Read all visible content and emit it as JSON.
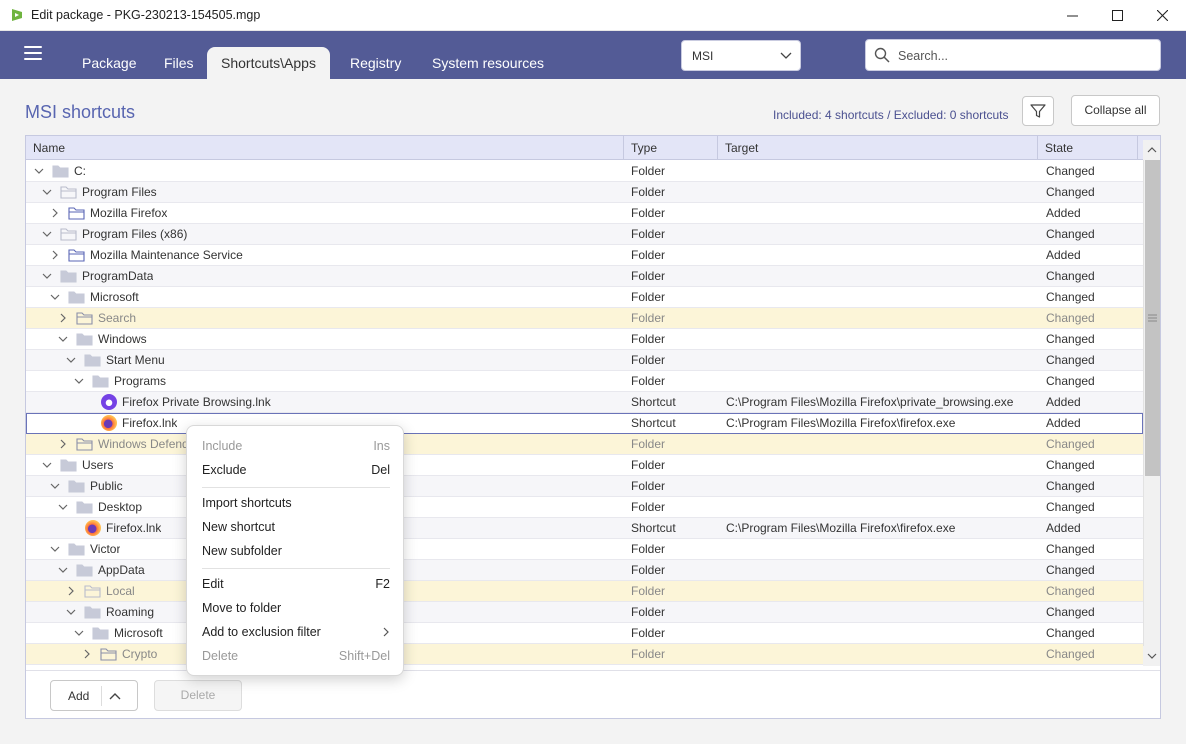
{
  "window": {
    "title": "Edit package - PKG-230213-154505.mgp",
    "minimize_icon": "minimize-icon",
    "maximize_icon": "maximize-icon",
    "close_icon": "close-icon"
  },
  "nav": {
    "tabs": [
      {
        "label": "Package"
      },
      {
        "label": "Files"
      },
      {
        "label": "Shortcuts\\Apps",
        "active": true
      },
      {
        "label": "Registry"
      },
      {
        "label": "System resources"
      }
    ],
    "msi_select": "MSI",
    "search_placeholder": "Search...",
    "accent": "#535b96"
  },
  "page": {
    "title": "MSI shortcuts",
    "summary": "Included: 4 shortcuts / Excluded: 0 shortcuts",
    "collapse_all": "Collapse all"
  },
  "grid": {
    "columns": [
      "Name",
      "Type",
      "Target",
      "State"
    ],
    "rows": [
      {
        "name": "C:",
        "level": 0,
        "exp": "open",
        "icon": "folder-filled",
        "type": "Folder",
        "target": "",
        "state": "Changed"
      },
      {
        "name": "Program Files",
        "level": 1,
        "exp": "open",
        "icon": "folder-outline",
        "type": "Folder",
        "target": "",
        "state": "Changed"
      },
      {
        "name": "Mozilla Firefox",
        "level": 2,
        "exp": "closed",
        "icon": "folder-blue",
        "type": "Folder",
        "target": "",
        "state": "Added"
      },
      {
        "name": "Program Files (x86)",
        "level": 1,
        "exp": "open",
        "icon": "folder-outline",
        "type": "Folder",
        "target": "",
        "state": "Changed"
      },
      {
        "name": "Mozilla Maintenance Service",
        "level": 2,
        "exp": "closed",
        "icon": "folder-blue",
        "type": "Folder",
        "target": "",
        "state": "Added"
      },
      {
        "name": "ProgramData",
        "level": 1,
        "exp": "open",
        "icon": "folder-filled",
        "type": "Folder",
        "target": "",
        "state": "Changed"
      },
      {
        "name": "Microsoft",
        "level": 2,
        "exp": "open",
        "icon": "folder-filled",
        "type": "Folder",
        "target": "",
        "state": "Changed"
      },
      {
        "name": "Search",
        "level": 3,
        "exp": "closed",
        "icon": "folder-outline-dark",
        "type": "Folder",
        "target": "",
        "state": "Changed",
        "excluded": true
      },
      {
        "name": "Windows",
        "level": 3,
        "exp": "open",
        "icon": "folder-filled",
        "type": "Folder",
        "target": "",
        "state": "Changed"
      },
      {
        "name": "Start Menu",
        "level": 4,
        "exp": "open",
        "icon": "folder-filled",
        "type": "Folder",
        "target": "",
        "state": "Changed"
      },
      {
        "name": "Programs",
        "level": 5,
        "exp": "open",
        "icon": "folder-filled",
        "type": "Folder",
        "target": "",
        "state": "Changed"
      },
      {
        "name": "Firefox Private Browsing.lnk",
        "level": 6,
        "exp": "none",
        "icon": "firefox-private-icon",
        "type": "Shortcut",
        "target": "C:\\Program Files\\Mozilla Firefox\\private_browsing.exe",
        "state": "Added"
      },
      {
        "name": "Firefox.lnk",
        "level": 6,
        "exp": "none",
        "icon": "firefox-icon",
        "type": "Shortcut",
        "target": "C:\\Program Files\\Mozilla Firefox\\firefox.exe",
        "state": "Added",
        "selected": true
      },
      {
        "name": "Windows Defender",
        "level": 3,
        "exp": "closed",
        "icon": "folder-outline-dark",
        "type": "Folder",
        "target": "",
        "state": "Changed",
        "excluded": true
      },
      {
        "name": "Users",
        "level": 1,
        "exp": "open",
        "icon": "folder-filled",
        "type": "Folder",
        "target": "",
        "state": "Changed"
      },
      {
        "name": "Public",
        "level": 2,
        "exp": "open",
        "icon": "folder-filled",
        "type": "Folder",
        "target": "",
        "state": "Changed"
      },
      {
        "name": "Desktop",
        "level": 3,
        "exp": "open",
        "icon": "folder-filled",
        "type": "Folder",
        "target": "",
        "state": "Changed"
      },
      {
        "name": "Firefox.lnk",
        "level": 4,
        "exp": "none",
        "icon": "firefox-icon",
        "type": "Shortcut",
        "target": "C:\\Program Files\\Mozilla Firefox\\firefox.exe",
        "state": "Added"
      },
      {
        "name": "Victor",
        "level": 2,
        "exp": "open",
        "icon": "folder-filled",
        "type": "Folder",
        "target": "",
        "state": "Changed"
      },
      {
        "name": "AppData",
        "level": 3,
        "exp": "open",
        "icon": "folder-filled",
        "type": "Folder",
        "target": "",
        "state": "Changed"
      },
      {
        "name": "Local",
        "level": 4,
        "exp": "closed",
        "icon": "folder-outline",
        "type": "Folder",
        "target": "",
        "state": "Changed",
        "excluded": true
      },
      {
        "name": "Roaming",
        "level": 4,
        "exp": "open",
        "icon": "folder-filled",
        "type": "Folder",
        "target": "",
        "state": "Changed"
      },
      {
        "name": "Microsoft",
        "level": 5,
        "exp": "open",
        "icon": "folder-filled",
        "type": "Folder",
        "target": "",
        "state": "Changed"
      },
      {
        "name": "Crypto",
        "level": 6,
        "exp": "closed",
        "icon": "folder-outline-dark",
        "type": "Folder",
        "target": "",
        "state": "Changed",
        "excluded": true
      }
    ],
    "excluded_color": "#fcf5d8"
  },
  "footer": {
    "add": "Add",
    "delete": "Delete"
  },
  "context_menu": {
    "items": [
      {
        "label": "Include",
        "shortcut": "Ins",
        "disabled": true
      },
      {
        "label": "Exclude",
        "shortcut": "Del"
      },
      {
        "sep": true
      },
      {
        "label": "Import shortcuts",
        "shortcut": ""
      },
      {
        "label": "New shortcut",
        "shortcut": ""
      },
      {
        "label": "New subfolder",
        "shortcut": ""
      },
      {
        "sep": true
      },
      {
        "label": "Edit",
        "shortcut": "F2"
      },
      {
        "label": "Move to folder",
        "shortcut": ""
      },
      {
        "label": "Add to exclusion filter",
        "shortcut": "",
        "submenu": true
      },
      {
        "label": "Delete",
        "shortcut": "Shift+Del",
        "disabled": true
      }
    ]
  }
}
